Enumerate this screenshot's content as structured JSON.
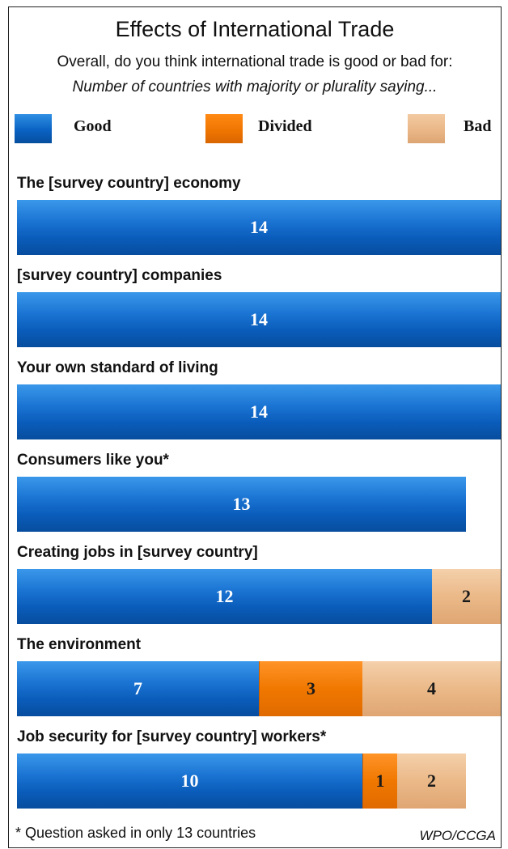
{
  "chart_data": {
    "type": "bar",
    "title": "Effects of International Trade",
    "subtitle": "Overall, do you think international trade is good or bad for:",
    "subtitle2": "Number of countries with majority or plurality saying...",
    "legend": [
      {
        "name": "Good",
        "color": "#0a62c3"
      },
      {
        "name": "Divided",
        "color": "#ee7400"
      },
      {
        "name": "Bad",
        "color": "#e9b585"
      }
    ],
    "categories": [
      "The [survey country] economy",
      "[survey country] companies",
      "Your own standard of living",
      "Consumers like you*",
      "Creating jobs in [survey country]",
      "The environment",
      "Job security for [survey country] workers*"
    ],
    "series": [
      {
        "name": "Good",
        "values": [
          14,
          14,
          14,
          13,
          12,
          7,
          10
        ]
      },
      {
        "name": "Divided",
        "values": [
          0,
          0,
          0,
          0,
          0,
          3,
          1
        ]
      },
      {
        "name": "Bad",
        "values": [
          0,
          0,
          0,
          0,
          2,
          4,
          2
        ]
      }
    ],
    "xlim": [
      0,
      14
    ],
    "stacked": true,
    "footnote": "* Question asked in only 13 countries",
    "source": "WPO/CCGA"
  }
}
